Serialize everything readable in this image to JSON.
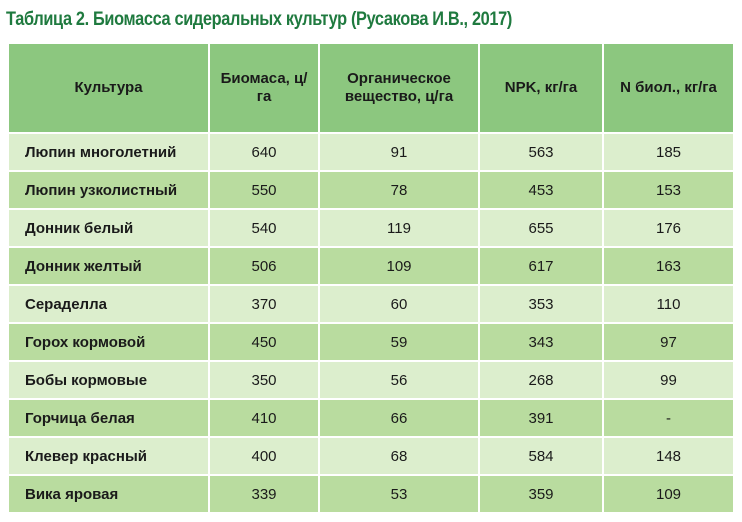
{
  "caption": "Таблица 2. Биомасса сидеральных культур (Русакова И.В., 2017)",
  "colors": {
    "caption": "#1f7a3f",
    "header_bg": "#8cc77f",
    "row_light": "#dceecd",
    "row_dark": "#b9dc9f"
  },
  "table": {
    "headers": [
      "Культура",
      "Биомаса, ц/га",
      "Органическое вещество, ц/га",
      "NPK, кг/га",
      "N биол., кг/га"
    ],
    "rows": [
      [
        "Люпин многолетний",
        "640",
        "91",
        "563",
        "185"
      ],
      [
        "Люпин узколистный",
        "550",
        "78",
        "453",
        "153"
      ],
      [
        "Донник белый",
        "540",
        "119",
        "655",
        "176"
      ],
      [
        "Донник желтый",
        "506",
        "109",
        "617",
        "163"
      ],
      [
        "Сераделла",
        "370",
        "60",
        "353",
        "110"
      ],
      [
        "Горох кормовой",
        "450",
        "59",
        "343",
        "97"
      ],
      [
        "Бобы кормовые",
        "350",
        "56",
        "268",
        "99"
      ],
      [
        "Горчица белая",
        "410",
        "66",
        "391",
        "-"
      ],
      [
        "Клевер красный",
        "400",
        "68",
        "584",
        "148"
      ],
      [
        "Вика яровая",
        "339",
        "53",
        "359",
        "109"
      ]
    ]
  }
}
